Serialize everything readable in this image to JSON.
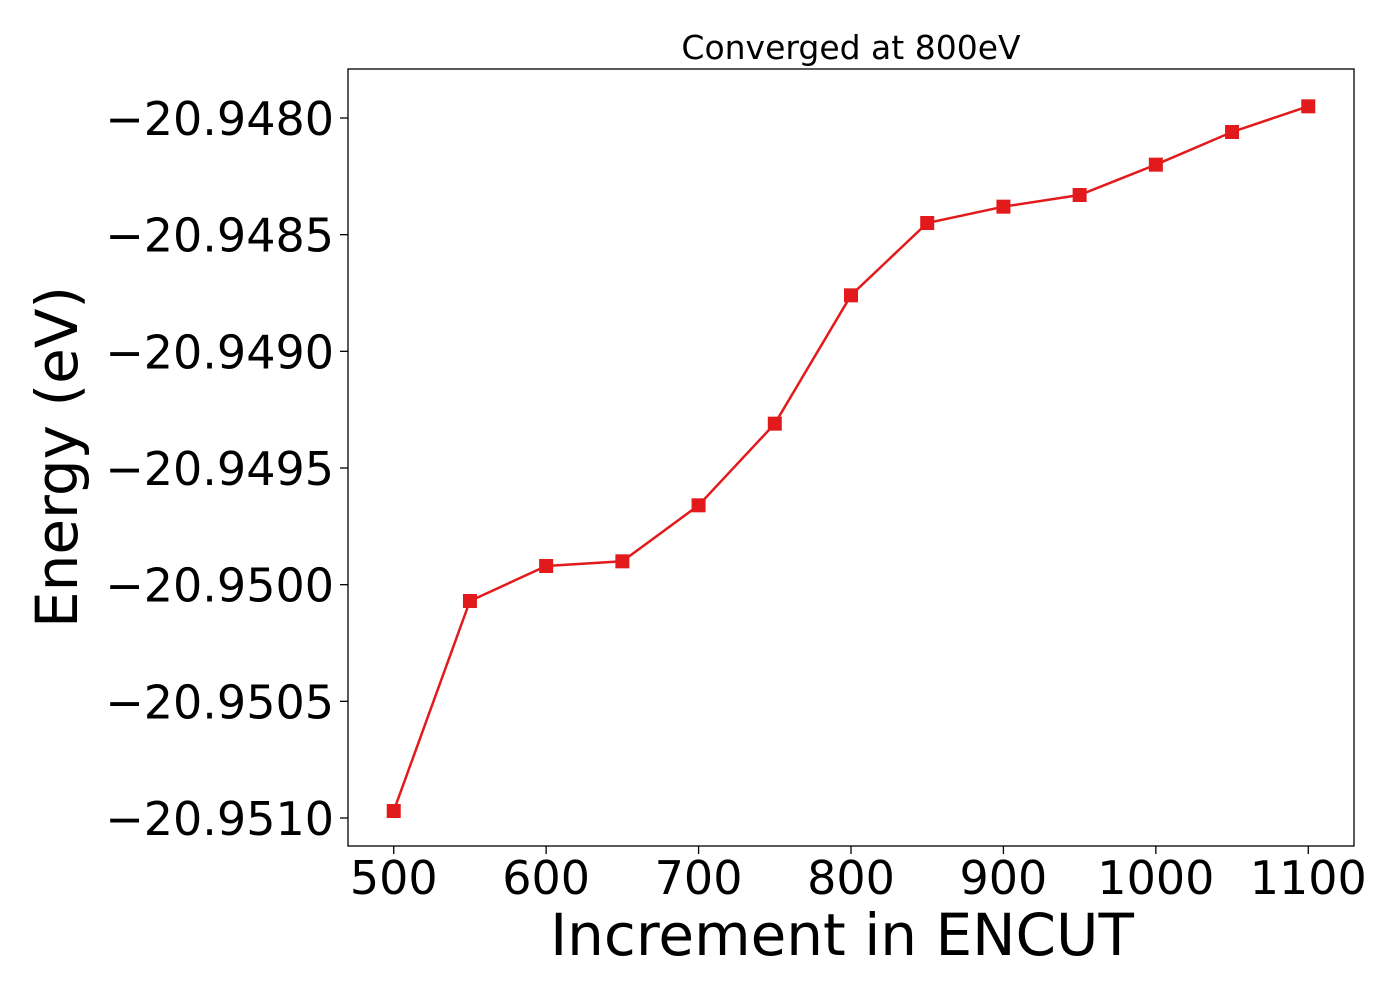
{
  "chart_data": {
    "type": "line",
    "title": "Converged at 800eV",
    "xlabel": "Increment in ENCUT",
    "ylabel": "Energy (eV)",
    "x": [
      500,
      550,
      600,
      650,
      700,
      750,
      800,
      850,
      900,
      950,
      1000,
      1050,
      1100
    ],
    "series": [
      {
        "values": [
          -20.95097,
          -20.95007,
          -20.94992,
          -20.9499,
          -20.94966,
          -20.94931,
          -20.94876,
          -20.94845,
          -20.94838,
          -20.94833,
          -20.9482,
          -20.94806,
          -20.94795
        ],
        "color": "#e31a1c",
        "marker": "square"
      }
    ],
    "xticks": [
      500,
      600,
      700,
      800,
      900,
      1000,
      1100
    ],
    "xtick_labels": [
      "500",
      "600",
      "700",
      "800",
      "900",
      "1000",
      "1100"
    ],
    "yticks": [
      -20.951,
      -20.9505,
      -20.95,
      -20.9495,
      -20.949,
      -20.9485,
      -20.948
    ],
    "ytick_labels": [
      "−20.9510",
      "−20.9505",
      "−20.9500",
      "−20.9495",
      "−20.9490",
      "−20.9485",
      "−20.9480"
    ],
    "xlim": [
      470,
      1130
    ],
    "ylim": [
      -20.95112,
      -20.94779
    ],
    "grid": false,
    "legend": false
  }
}
